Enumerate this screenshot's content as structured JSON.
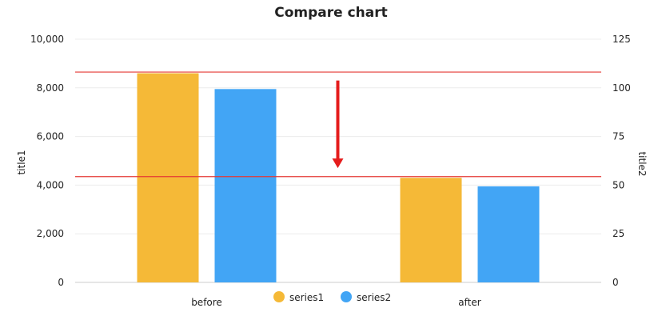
{
  "chart_data": {
    "type": "bar",
    "title": "Compare chart",
    "categories": [
      "before",
      "after"
    ],
    "series": [
      {
        "name": "series1",
        "values": [
          8600,
          4300
        ],
        "color": "#F5B937"
      },
      {
        "name": "series2",
        "values": [
          7950,
          3950
        ],
        "color": "#42A5F5"
      }
    ],
    "y_left": {
      "label": "title1",
      "range": [
        0,
        10000
      ],
      "ticks": [
        "0",
        "2,000",
        "4,000",
        "6,000",
        "8,000",
        "10,000"
      ],
      "tick_values": [
        0,
        2000,
        4000,
        6000,
        8000,
        10000
      ]
    },
    "y_right": {
      "label": "title2",
      "range": [
        0,
        125
      ],
      "ticks": [
        "0",
        "25",
        "50",
        "75",
        "100",
        "125"
      ],
      "tick_values": [
        0,
        25,
        50,
        75,
        100,
        125
      ]
    },
    "reference_lines": [
      {
        "axis": "left",
        "value": 8650,
        "color": "#E53935"
      },
      {
        "axis": "left",
        "value": 4350,
        "color": "#E53935"
      }
    ],
    "arrow": {
      "axis": "left",
      "from": 8300,
      "to": 4800,
      "color": "#E51C1C",
      "direction": "down"
    },
    "grid": true,
    "legend": {
      "position": "bottom-center"
    }
  }
}
